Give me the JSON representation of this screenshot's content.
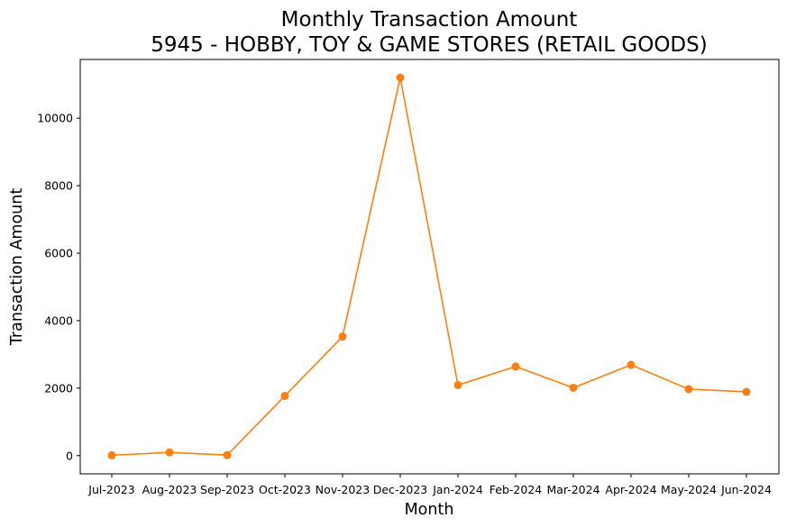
{
  "chart_data": {
    "type": "line",
    "title": "Monthly Transaction Amount",
    "subtitle": "5945 - HOBBY, TOY & GAME STORES (RETAIL GOODS)",
    "xlabel": "Month",
    "ylabel": "Transaction Amount",
    "categories": [
      "Jul-2023",
      "Aug-2023",
      "Sep-2023",
      "Oct-2023",
      "Nov-2023",
      "Dec-2023",
      "Jan-2024",
      "Feb-2024",
      "Mar-2024",
      "Apr-2024",
      "May-2024",
      "Jun-2024"
    ],
    "series": [
      {
        "values": [
          10,
          95,
          15,
          1770,
          3530,
          11200,
          2090,
          2640,
          2010,
          2690,
          1970,
          1890
        ],
        "color": "#ff7f0e",
        "marker": "circle"
      }
    ],
    "ylim": [
      -540,
      11740
    ],
    "yticks": [
      0,
      2000,
      4000,
      6000,
      8000,
      10000
    ],
    "grid": false,
    "legend": "none"
  }
}
